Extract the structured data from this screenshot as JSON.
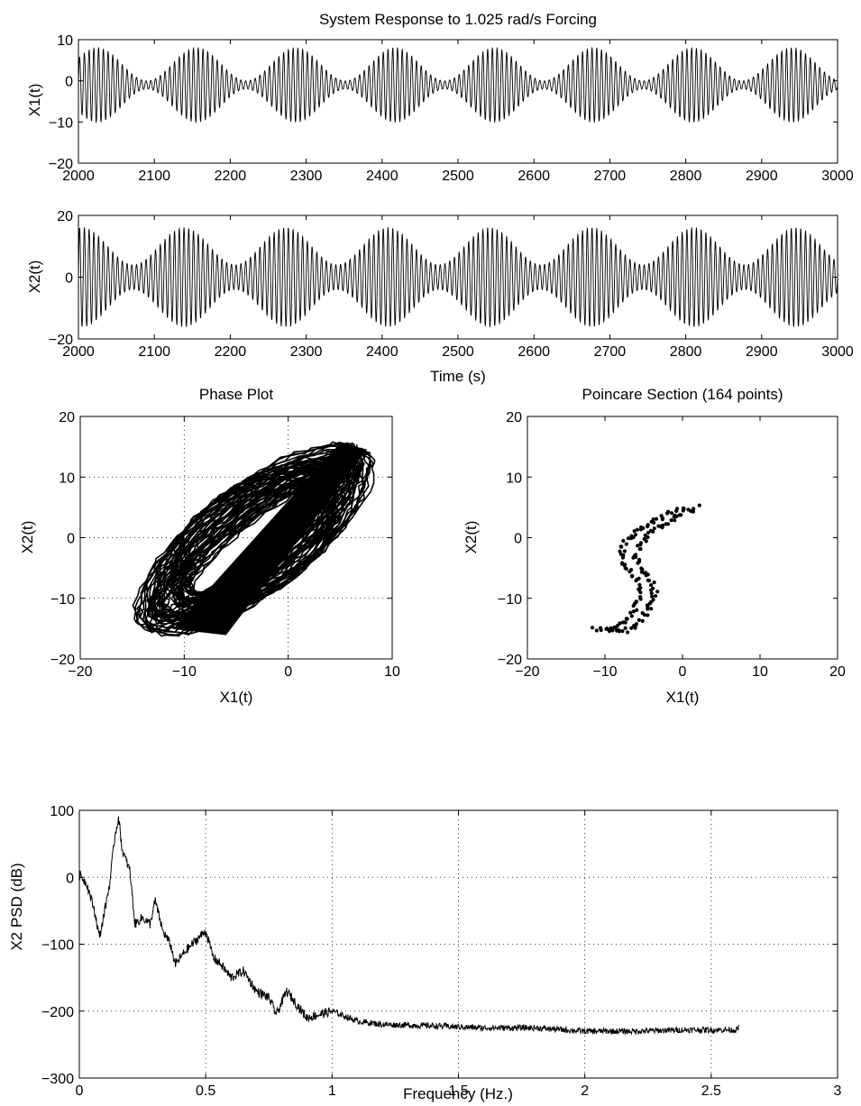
{
  "figure": {
    "panels": [
      {
        "id": "x1_time",
        "type": "line",
        "title": "System Response to 1.025 rad/s Forcing",
        "xlabel": "",
        "ylabel": "X1(t)",
        "xlim": [
          2000,
          3000
        ],
        "ylim": [
          -20,
          10
        ],
        "xticks": [
          2000,
          2100,
          2200,
          2300,
          2400,
          2500,
          2600,
          2700,
          2800,
          2900,
          3000
        ],
        "yticks": [
          10,
          0,
          -10,
          -20
        ],
        "grid": false
      },
      {
        "id": "x2_time",
        "type": "line",
        "title": "",
        "xlabel": "Time (s)",
        "ylabel": "X2(t)",
        "xlim": [
          2000,
          3000
        ],
        "ylim": [
          -20,
          20
        ],
        "xticks": [
          2000,
          2100,
          2200,
          2300,
          2400,
          2500,
          2600,
          2700,
          2800,
          2900,
          3000
        ],
        "yticks": [
          20,
          0,
          -20
        ],
        "grid": false
      },
      {
        "id": "phase",
        "type": "line",
        "title": "Phase Plot",
        "xlabel": "X1(t)",
        "ylabel": "X2(t)",
        "xlim": [
          -20,
          10
        ],
        "ylim": [
          -20,
          20
        ],
        "xticks": [
          -20,
          -10,
          0,
          10
        ],
        "yticks": [
          20,
          10,
          0,
          -10,
          -20
        ],
        "grid": true
      },
      {
        "id": "poincare",
        "type": "scatter",
        "title": "Poincare Section (164 points)",
        "xlabel": "X1(t)",
        "ylabel": "X2(t)",
        "xlim": [
          -20,
          20
        ],
        "ylim": [
          -20,
          20
        ],
        "xticks": [
          -20,
          -10,
          0,
          10,
          20
        ],
        "yticks": [
          20,
          10,
          0,
          -10,
          -20
        ],
        "grid": false
      },
      {
        "id": "psd",
        "type": "line",
        "title": "",
        "xlabel": "Frequency (Hz.)",
        "ylabel": "X2 PSD (dB)",
        "xlim": [
          0,
          3
        ],
        "ylim": [
          -300,
          100
        ],
        "xticks": [
          0,
          0.5,
          1,
          1.5,
          2,
          2.5,
          3
        ],
        "yticks": [
          100,
          0,
          -100,
          -200,
          -300
        ],
        "grid": true
      }
    ]
  },
  "chart_data": [
    {
      "type": "line",
      "title": "System Response to 1.025 rad/s Forcing",
      "ylabel": "X1(t)",
      "xlim": [
        2000,
        3000
      ],
      "ylim": [
        -20,
        10
      ],
      "series": [
        {
          "kind": "beating_oscillation",
          "beat_peak_times": [
            2025,
            2135,
            2265,
            2400,
            2535,
            2670,
            2805,
            2940
          ],
          "envelope_upper_max": 8,
          "envelope_lower_min": -10,
          "envelope_min_amplitude": 1,
          "mean": -1,
          "cycles_per_100s": 16
        }
      ]
    },
    {
      "type": "line",
      "xlabel": "Time (s)",
      "ylabel": "X2(t)",
      "xlim": [
        2000,
        3000
      ],
      "ylim": [
        -20,
        20
      ],
      "series": [
        {
          "kind": "beating_oscillation",
          "beat_peak_times": [
            2005,
            2135,
            2270,
            2405,
            2540,
            2675,
            2810,
            2945
          ],
          "envelope_upper_max": 16,
          "envelope_lower_min": -16,
          "envelope_min_amplitude": 4,
          "mean": 0,
          "cycles_per_100s": 16
        }
      ]
    },
    {
      "type": "line",
      "title": "Phase Plot",
      "xlabel": "X1(t)",
      "ylabel": "X2(t)",
      "xlim": [
        -20,
        10
      ],
      "ylim": [
        -20,
        20
      ],
      "series": [
        {
          "kind": "orbit_band",
          "x_range": [
            -11,
            7.5
          ],
          "y_range": [
            -16,
            15.5
          ],
          "corner_points": [
            [
              -11,
              -15
            ],
            [
              -6,
              -16
            ],
            [
              7.5,
              14.5
            ],
            [
              5,
              15.5
            ]
          ]
        }
      ]
    },
    {
      "type": "scatter",
      "title": "Poincare Section (164 points)",
      "xlabel": "X1(t)",
      "ylabel": "X2(t)",
      "xlim": [
        -20,
        20
      ],
      "ylim": [
        -20,
        20
      ],
      "point_count": 164,
      "series": [
        {
          "kind": "s_curve_band",
          "curve": [
            [
              1,
              5
            ],
            [
              -1,
              4
            ],
            [
              -3,
              2.5
            ],
            [
              -5,
              1
            ],
            [
              -6.5,
              -1
            ],
            [
              -7,
              -3
            ],
            [
              -6.5,
              -5
            ],
            [
              -5,
              -7
            ],
            [
              -4.5,
              -9
            ],
            [
              -5,
              -11
            ],
            [
              -6,
              -13
            ],
            [
              -7,
              -14.5
            ],
            [
              -8.5,
              -15.5
            ],
            [
              -10.5,
              -15
            ]
          ]
        }
      ]
    },
    {
      "type": "line",
      "xlabel": "Frequency (Hz.)",
      "ylabel": "X2 PSD (dB)",
      "xlim": [
        0,
        3
      ],
      "ylim": [
        -300,
        100
      ],
      "series": [
        {
          "x": [
            0,
            0.03,
            0.06,
            0.08,
            0.1,
            0.12,
            0.14,
            0.155,
            0.17,
            0.2,
            0.22,
            0.25,
            0.28,
            0.3,
            0.33,
            0.36,
            0.38,
            0.42,
            0.46,
            0.5,
            0.53,
            0.56,
            0.6,
            0.65,
            0.7,
            0.75,
            0.78,
            0.82,
            0.86,
            0.9,
            0.95,
            1.0,
            1.1,
            1.2,
            1.4,
            1.6,
            1.8,
            2.0,
            2.2,
            2.4,
            2.6,
            2.61
          ],
          "y": [
            5,
            -10,
            -50,
            -90,
            -50,
            -10,
            60,
            90,
            40,
            10,
            -70,
            -60,
            -70,
            -35,
            -80,
            -100,
            -130,
            -110,
            -95,
            -80,
            -120,
            -130,
            -150,
            -140,
            -170,
            -180,
            -205,
            -170,
            -190,
            -210,
            -205,
            -200,
            -215,
            -220,
            -222,
            -225,
            -225,
            -230,
            -230,
            -228,
            -228,
            -225
          ]
        }
      ]
    }
  ]
}
